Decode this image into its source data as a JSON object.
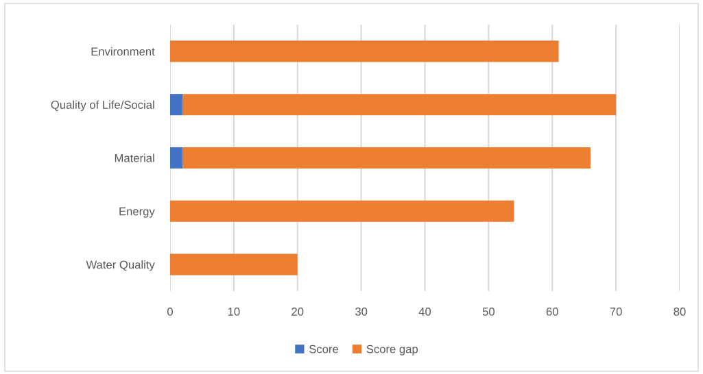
{
  "chart_data": {
    "type": "bar",
    "orientation": "horizontal",
    "stacked": true,
    "categories": [
      "Environment",
      "Quality of Life/Social",
      "Material",
      "Energy",
      "Water Quality"
    ],
    "series": [
      {
        "name": "Score",
        "color": "#4472c4",
        "values": [
          0,
          2,
          2,
          0,
          0
        ]
      },
      {
        "name": "Score gap",
        "color": "#ed7d31",
        "values": [
          61,
          68,
          64,
          54,
          20
        ]
      }
    ],
    "xlim": [
      0,
      80
    ],
    "xticks": [
      0,
      10,
      20,
      30,
      40,
      50,
      60,
      70,
      80
    ],
    "grid": "x",
    "legend": "bottom"
  }
}
